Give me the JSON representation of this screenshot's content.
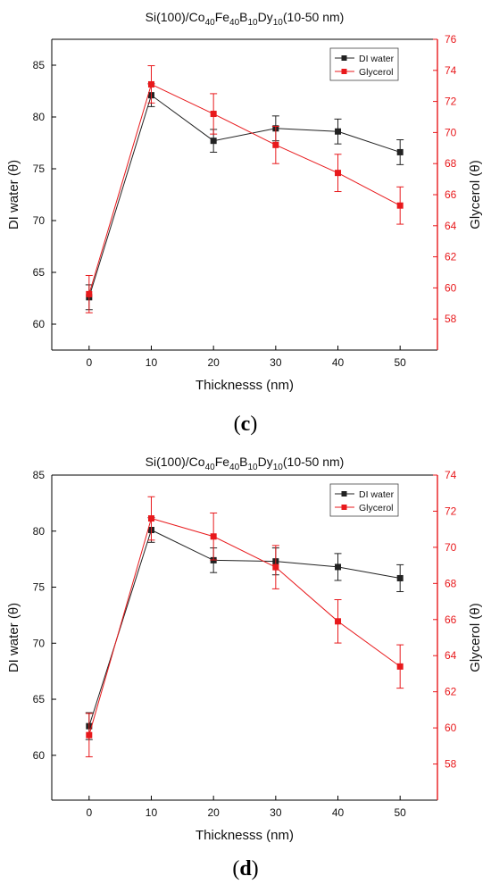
{
  "chart_data": [
    {
      "type": "line",
      "panel_label": "c",
      "title": {
        "prefix": "Si(100)/Co",
        "parts": [
          [
            "40",
            "Fe"
          ],
          [
            "40",
            "B"
          ],
          [
            "10",
            "Dy"
          ],
          [
            "10",
            "(10-50 nm)"
          ]
        ]
      },
      "xlabel": "Thicknesss (nm)",
      "ylabel_left": "DI water (θ)",
      "ylabel_right": "Glycerol (θ)",
      "xlim": [
        -6,
        56
      ],
      "xticks": [
        0,
        10,
        20,
        30,
        40,
        50
      ],
      "ylim_left": [
        57.5,
        87.5
      ],
      "yticks_left": [
        60,
        65,
        70,
        75,
        80,
        85
      ],
      "ylim_right": [
        56,
        76
      ],
      "yticks_right": [
        58,
        60,
        62,
        64,
        66,
        68,
        70,
        72,
        74,
        76
      ],
      "legend_position": "top-right",
      "grid": false,
      "series": [
        {
          "name": "DI water",
          "axis": "left",
          "color": "#222222",
          "x": [
            0,
            10,
            20,
            30,
            40,
            50
          ],
          "values": [
            62.6,
            82.1,
            77.7,
            78.9,
            78.6,
            76.6
          ],
          "errors": [
            1.2,
            1.1,
            1.1,
            1.2,
            1.2,
            1.2
          ]
        },
        {
          "name": "Glycerol",
          "axis": "right",
          "color": "#e8191c",
          "x": [
            0,
            10,
            20,
            30,
            40,
            50
          ],
          "values": [
            59.6,
            73.1,
            71.2,
            69.2,
            67.4,
            65.3
          ],
          "errors": [
            1.2,
            1.2,
            1.3,
            1.2,
            1.2,
            1.2
          ]
        }
      ]
    },
    {
      "type": "line",
      "panel_label": "d",
      "title": {
        "prefix": "Si(100)/Co",
        "parts": [
          [
            "40",
            "Fe"
          ],
          [
            "40",
            "B"
          ],
          [
            "10",
            "Dy"
          ],
          [
            "10",
            "(10-50 nm)"
          ]
        ]
      },
      "xlabel": "Thicknesss (nm)",
      "ylabel_left": "DI water (θ)",
      "ylabel_right": "Glycerol (θ)",
      "xlim": [
        -6,
        56
      ],
      "xticks": [
        0,
        10,
        20,
        30,
        40,
        50
      ],
      "ylim_left": [
        56,
        85
      ],
      "yticks_left": [
        60,
        65,
        70,
        75,
        80,
        85
      ],
      "ylim_right": [
        56,
        74
      ],
      "yticks_right": [
        58,
        60,
        62,
        64,
        66,
        68,
        70,
        72,
        74
      ],
      "legend_position": "top-right",
      "grid": false,
      "series": [
        {
          "name": "DI water",
          "axis": "left",
          "color": "#222222",
          "x": [
            0,
            10,
            20,
            30,
            40,
            50
          ],
          "values": [
            62.6,
            80.1,
            77.4,
            77.3,
            76.8,
            75.8
          ],
          "errors": [
            1.2,
            1.1,
            1.1,
            1.2,
            1.2,
            1.2
          ]
        },
        {
          "name": "Glycerol",
          "axis": "right",
          "color": "#e8191c",
          "x": [
            0,
            10,
            20,
            30,
            40,
            50
          ],
          "values": [
            59.6,
            71.6,
            70.6,
            68.9,
            65.9,
            63.4
          ],
          "errors": [
            1.2,
            1.2,
            1.3,
            1.2,
            1.2,
            1.2
          ]
        }
      ]
    }
  ]
}
